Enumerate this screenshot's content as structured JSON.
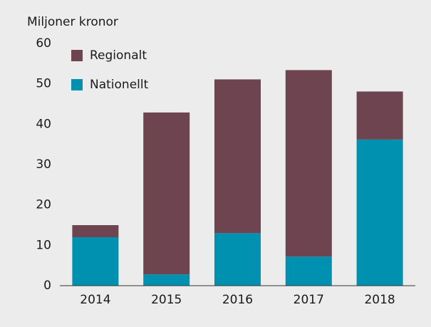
{
  "chart_data": {
    "type": "stacked_bar",
    "y_label": "Miljoner kronor",
    "categories": [
      "2014",
      "2015",
      "2016",
      "2017",
      "2018"
    ],
    "series": [
      {
        "name": "Nationellt",
        "color": "#0090b0",
        "values": [
          12,
          2.8,
          13,
          7.2,
          36.2
        ]
      },
      {
        "name": "Regionalt",
        "color": "#6e4450",
        "values": [
          3,
          40.1,
          38.1,
          46.2,
          11.9
        ]
      }
    ],
    "ylim": [
      0,
      60
    ],
    "yticks": [
      0,
      10,
      20,
      30,
      40,
      50,
      60
    ],
    "legend": "upper left"
  }
}
